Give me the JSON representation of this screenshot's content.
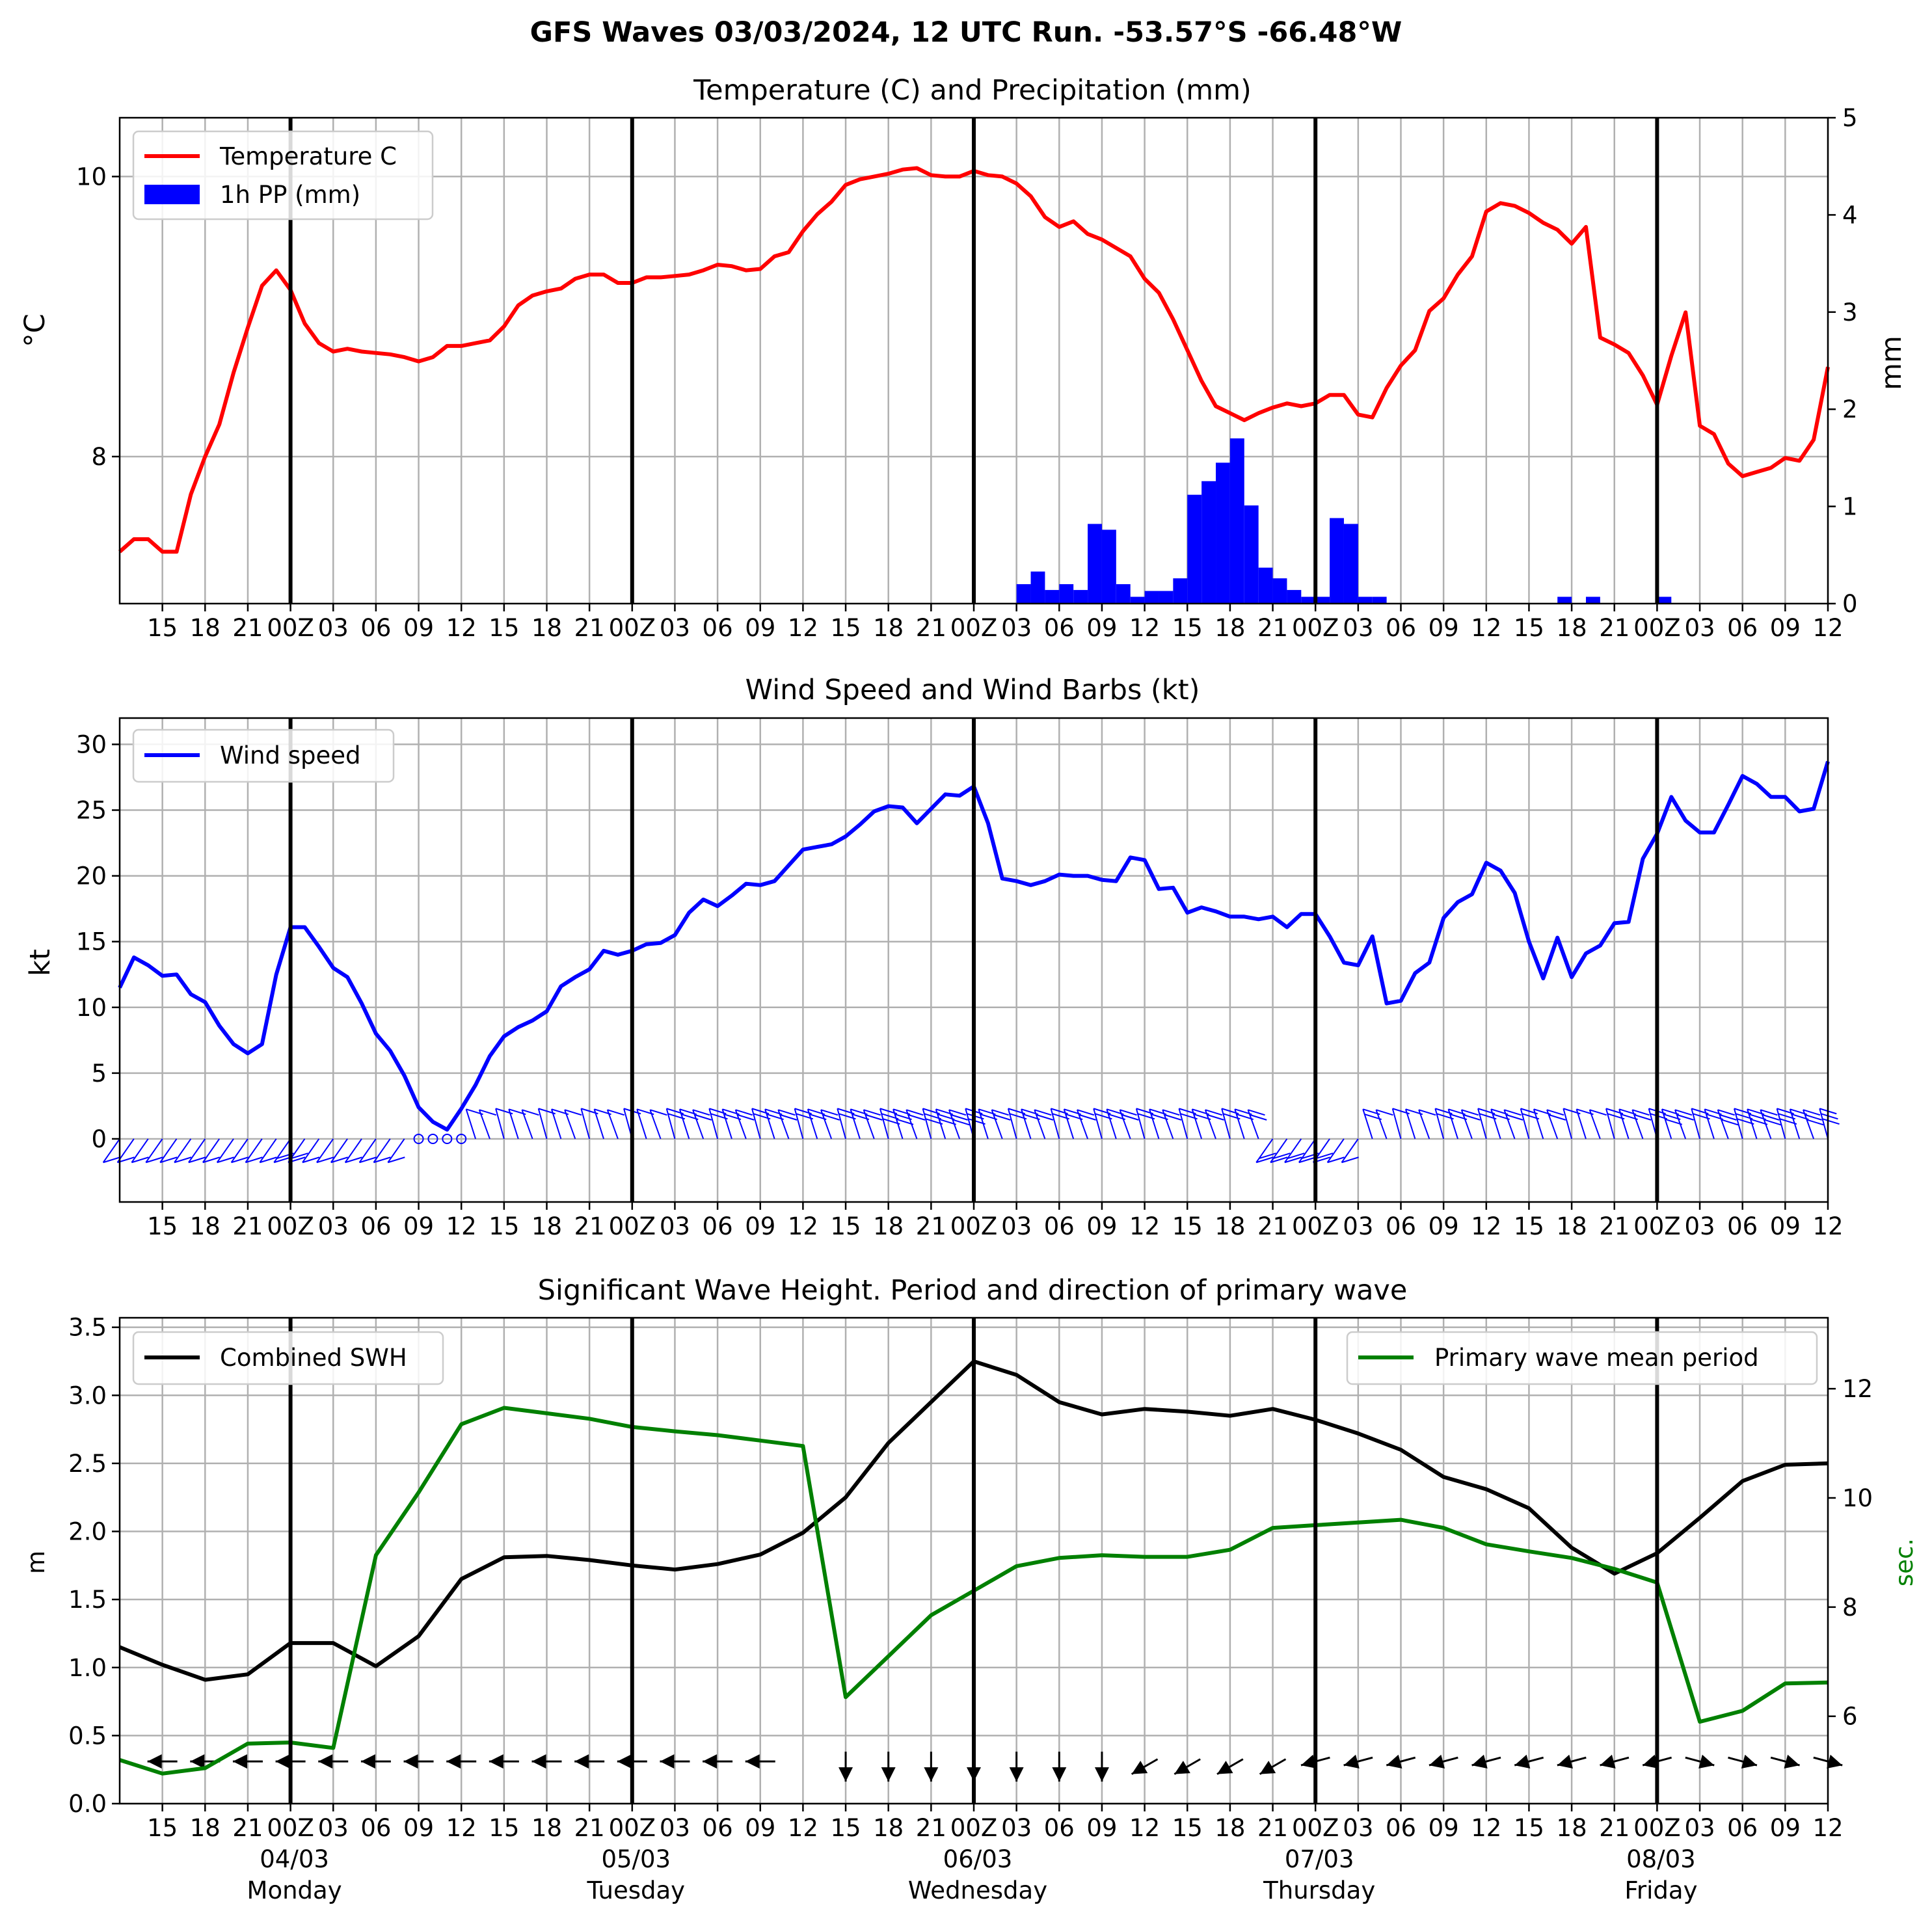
{
  "suptitle": "GFS Waves 03/03/2024, 12 UTC Run. -53.57°S -66.48°W",
  "colors": {
    "temperature": "#ff0000",
    "precip": "#0000ff",
    "wind": "#0000ff",
    "swh": "#000000",
    "period": "#008000",
    "grid": "#b0b0b0",
    "day_line": "#000000"
  },
  "time_axis": {
    "start_hour": 12,
    "end_hour": 132,
    "tick_hours": [
      15,
      18,
      21,
      24,
      27,
      30,
      33,
      36,
      39,
      42,
      45,
      48,
      51,
      54,
      57,
      60,
      63,
      66,
      69,
      72,
      75,
      78,
      81,
      84,
      87,
      90,
      93,
      96,
      99,
      102,
      105,
      108,
      111,
      114,
      117,
      120,
      123,
      126,
      129,
      132
    ],
    "tick_labels": [
      "15",
      "18",
      "21",
      "00Z",
      "03",
      "06",
      "09",
      "12",
      "15",
      "18",
      "21",
      "00Z",
      "03",
      "06",
      "09",
      "12",
      "15",
      "18",
      "21",
      "00Z",
      "03",
      "06",
      "09",
      "12",
      "15",
      "18",
      "21",
      "00Z",
      "03",
      "06",
      "09",
      "12",
      "15",
      "18",
      "21",
      "00Z",
      "03",
      "06",
      "09",
      "12"
    ],
    "day_line_hours": [
      24,
      48,
      72,
      96,
      120
    ],
    "day_labels": [
      {
        "hour": 24,
        "date": "04/03",
        "weekday": "Monday"
      },
      {
        "hour": 48,
        "date": "05/03",
        "weekday": "Tuesday"
      },
      {
        "hour": 72,
        "date": "06/03",
        "weekday": "Wednesday"
      },
      {
        "hour": 96,
        "date": "07/03",
        "weekday": "Thursday"
      },
      {
        "hour": 120,
        "date": "08/03",
        "weekday": "Friday"
      }
    ]
  },
  "chart_data": [
    {
      "type": "line",
      "title": "Temperature (C) and Precipitation (mm)",
      "ylabel": "°C",
      "ylabel2": "mm",
      "ylim": [
        6.95,
        10.42
      ],
      "ylim2": [
        0,
        5
      ],
      "yticks": [
        8,
        10
      ],
      "yticks2": [
        0,
        1,
        2,
        3,
        4,
        5
      ],
      "grid": true,
      "legend": "top-left",
      "series": [
        {
          "name": "Temperature C",
          "kind": "line",
          "x": [
            12,
            13,
            14,
            15,
            16,
            17,
            18,
            19,
            20,
            21,
            22,
            23,
            24,
            25,
            26,
            27,
            28,
            29,
            30,
            31,
            32,
            33,
            34,
            35,
            36,
            37,
            38,
            39,
            40,
            41,
            42,
            43,
            44,
            45,
            46,
            47,
            48,
            49,
            50,
            51,
            52,
            53,
            54,
            55,
            56,
            57,
            58,
            59,
            60,
            61,
            62,
            63,
            64,
            65,
            66,
            67,
            68,
            69,
            70,
            71,
            72,
            73,
            74,
            75,
            76,
            77,
            78,
            79,
            80,
            81,
            82,
            83,
            84,
            85,
            86,
            87,
            88,
            89,
            90,
            91,
            92,
            93,
            94,
            95,
            96,
            97,
            98,
            99,
            100,
            101,
            102,
            103,
            104,
            105,
            106,
            107,
            108,
            109,
            110,
            111,
            112,
            113,
            114,
            115,
            116,
            117,
            118,
            119,
            120,
            121,
            122,
            123,
            124,
            125,
            126,
            127,
            128,
            129,
            130,
            131,
            132
          ],
          "values": [
            7.32,
            7.41,
            7.41,
            7.32,
            7.32,
            7.73,
            8.0,
            8.23,
            8.6,
            8.92,
            9.22,
            9.33,
            9.19,
            8.95,
            8.81,
            8.75,
            8.77,
            8.75,
            8.74,
            8.73,
            8.71,
            8.68,
            8.71,
            8.79,
            8.79,
            8.81,
            8.83,
            8.93,
            9.08,
            9.15,
            9.18,
            9.2,
            9.27,
            9.3,
            9.3,
            9.24,
            9.24,
            9.28,
            9.28,
            9.29,
            9.3,
            9.33,
            9.37,
            9.36,
            9.33,
            9.34,
            9.43,
            9.46,
            9.61,
            9.73,
            9.82,
            9.94,
            9.98,
            10.0,
            10.02,
            10.05,
            10.06,
            10.01,
            10.0,
            10.0,
            10.04,
            10.01,
            10.0,
            9.95,
            9.86,
            9.71,
            9.64,
            9.68,
            9.59,
            9.55,
            9.49,
            9.43,
            9.27,
            9.17,
            8.98,
            8.76,
            8.54,
            8.36,
            8.31,
            8.26,
            8.31,
            8.35,
            8.38,
            8.36,
            8.38,
            8.44,
            8.44,
            8.3,
            8.28,
            8.49,
            8.65,
            8.76,
            9.04,
            9.13,
            9.3,
            9.43,
            9.75,
            9.81,
            9.79,
            9.74,
            9.67,
            9.62,
            9.52,
            9.64,
            8.85,
            8.8,
            8.74,
            8.58,
            8.37,
            8.72,
            9.03,
            8.22,
            8.16,
            7.95,
            7.86,
            7.89,
            7.92,
            7.99,
            7.97,
            8.12,
            8.64
          ]
        },
        {
          "name": "1h PP (mm)",
          "kind": "bar",
          "axis": "right",
          "x": [
            76,
            77,
            78,
            79,
            80,
            81,
            82,
            83,
            84,
            85,
            86,
            87,
            88,
            89,
            90,
            91,
            92,
            93,
            94,
            95,
            96,
            97,
            98,
            99,
            100,
            101,
            114,
            116,
            121
          ],
          "values": [
            0.2,
            0.33,
            0.14,
            0.2,
            0.14,
            0.82,
            0.76,
            0.2,
            0.07,
            0.13,
            0.13,
            0.26,
            1.12,
            1.26,
            1.45,
            1.7,
            1.01,
            0.37,
            0.26,
            0.14,
            0.07,
            0.07,
            0.88,
            0.82,
            0.07,
            0.07,
            0.07,
            0.07,
            0.07
          ]
        }
      ]
    },
    {
      "type": "line",
      "title": "Wind Speed and Wind Barbs (kt)",
      "ylabel": "kt",
      "ylim": [
        -4.8,
        32
      ],
      "yticks": [
        0,
        5,
        10,
        15,
        20,
        25,
        30
      ],
      "grid": true,
      "legend": "top-left",
      "series": [
        {
          "name": "Wind speed",
          "x": [
            12,
            13,
            14,
            15,
            16,
            17,
            18,
            19,
            20,
            21,
            22,
            23,
            24,
            25,
            26,
            27,
            28,
            29,
            30,
            31,
            32,
            33,
            34,
            35,
            36,
            37,
            38,
            39,
            40,
            41,
            42,
            43,
            44,
            45,
            46,
            47,
            48,
            49,
            50,
            51,
            52,
            53,
            54,
            55,
            56,
            57,
            58,
            59,
            60,
            61,
            62,
            63,
            64,
            65,
            66,
            67,
            68,
            69,
            70,
            71,
            72,
            73,
            74,
            75,
            76,
            77,
            78,
            79,
            80,
            81,
            82,
            83,
            84,
            85,
            86,
            87,
            88,
            89,
            90,
            91,
            92,
            93,
            94,
            95,
            96,
            97,
            98,
            99,
            100,
            101,
            102,
            103,
            104,
            105,
            106,
            107,
            108,
            109,
            110,
            111,
            112,
            113,
            114,
            115,
            116,
            117,
            118,
            119,
            120,
            121,
            122,
            123,
            124,
            125,
            126,
            127,
            128,
            129,
            130,
            131,
            132
          ],
          "values": [
            11.5,
            13.8,
            13.2,
            12.4,
            12.5,
            11.0,
            10.4,
            8.6,
            7.2,
            6.5,
            7.2,
            12.5,
            16.1,
            16.1,
            14.6,
            13.0,
            12.3,
            10.3,
            8.0,
            6.7,
            4.8,
            2.4,
            1.3,
            0.7,
            2.3,
            4.1,
            6.3,
            7.8,
            8.5,
            9.0,
            9.7,
            11.6,
            12.3,
            12.9,
            14.3,
            14.0,
            14.3,
            14.8,
            14.9,
            15.5,
            17.2,
            18.2,
            17.7,
            18.5,
            19.4,
            19.3,
            19.6,
            20.8,
            22.0,
            22.2,
            22.4,
            23.0,
            23.9,
            24.9,
            25.3,
            25.2,
            24.0,
            25.1,
            26.2,
            26.1,
            26.8,
            24.0,
            19.8,
            19.6,
            19.3,
            19.6,
            20.1,
            20.0,
            20.0,
            19.7,
            19.6,
            21.4,
            21.2,
            19.0,
            19.1,
            17.2,
            17.6,
            17.3,
            16.9,
            16.9,
            16.7,
            16.9,
            16.1,
            17.1,
            17.1,
            15.4,
            13.4,
            13.2,
            15.4,
            10.3,
            10.5,
            12.6,
            13.4,
            16.8,
            18.0,
            18.6,
            21.0,
            20.4,
            18.7,
            15.0,
            12.2,
            15.3,
            12.3,
            14.1,
            14.7,
            16.4,
            16.5,
            21.3,
            23.2,
            26.0,
            24.2,
            23.3,
            23.3,
            25.4,
            27.6,
            27.0,
            26.0,
            26.0,
            24.9,
            25.1,
            28.7
          ]
        }
      ]
    },
    {
      "type": "line",
      "title": "Significant Wave Height. Period and direction of primary wave",
      "ylabel": "m",
      "ylabel2": "sec.",
      "ylim": [
        0,
        3.57
      ],
      "ylim2": [
        4.4,
        13.3
      ],
      "yticks": [
        0.0,
        0.5,
        1.0,
        1.5,
        2.0,
        2.5,
        3.0,
        3.5
      ],
      "yticks2": [
        6,
        8,
        10,
        12
      ],
      "grid": true,
      "series": [
        {
          "name": "Combined SWH",
          "legend": "top-left",
          "x": [
            12,
            15,
            18,
            21,
            24,
            27,
            30,
            33,
            36,
            39,
            42,
            45,
            48,
            51,
            54,
            57,
            60,
            63,
            66,
            69,
            72,
            75,
            78,
            81,
            84,
            87,
            90,
            93,
            96,
            99,
            102,
            105,
            108,
            111,
            114,
            117,
            120,
            123,
            126,
            129,
            132
          ],
          "values": [
            1.15,
            1.02,
            0.91,
            0.95,
            1.18,
            1.18,
            1.01,
            1.23,
            1.65,
            1.81,
            1.82,
            1.79,
            1.75,
            1.72,
            1.76,
            1.83,
            1.99,
            2.25,
            2.65,
            2.95,
            3.25,
            3.15,
            2.95,
            2.86,
            2.9,
            2.88,
            2.85,
            2.9,
            2.82,
            2.72,
            2.6,
            2.4,
            2.31,
            2.17,
            1.88,
            1.69,
            1.84,
            2.1,
            2.37,
            2.49,
            2.5
          ]
        },
        {
          "name": "Primary wave mean period",
          "legend": "top-right",
          "axis": "right",
          "x": [
            12,
            15,
            18,
            21,
            24,
            27,
            30,
            33,
            36,
            39,
            42,
            45,
            48,
            51,
            54,
            57,
            60,
            63,
            66,
            69,
            72,
            75,
            78,
            81,
            84,
            87,
            90,
            93,
            96,
            99,
            102,
            105,
            108,
            111,
            114,
            117,
            120,
            123,
            126,
            129,
            132
          ],
          "values": [
            5.2,
            4.95,
            5.05,
            5.5,
            5.52,
            5.42,
            8.95,
            10.1,
            11.35,
            11.65,
            11.55,
            11.45,
            11.3,
            11.22,
            11.15,
            11.05,
            10.95,
            6.35,
            7.1,
            7.85,
            8.3,
            8.75,
            8.9,
            8.95,
            8.92,
            8.92,
            9.05,
            9.45,
            9.5,
            9.55,
            9.6,
            9.45,
            9.15,
            9.02,
            8.9,
            8.7,
            8.45,
            5.9,
            6.1,
            6.6,
            6.62
          ]
        }
      ]
    }
  ]
}
